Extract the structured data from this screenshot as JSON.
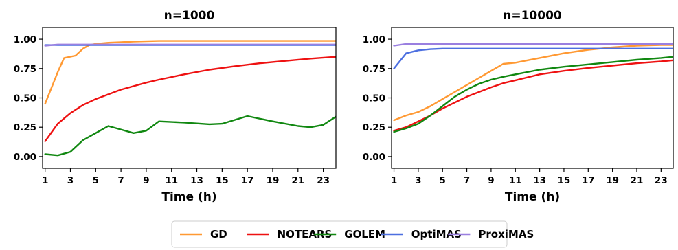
{
  "chart_data": [
    {
      "type": "line",
      "title": "n=1000",
      "xlabel": "Time (h)",
      "ylabel": "",
      "xlim": [
        0.8,
        24.0
      ],
      "ylim": [
        -0.1,
        1.1
      ],
      "xticks": [
        "1",
        "3",
        "5",
        "7",
        "9",
        "11",
        "13",
        "15",
        "17",
        "19",
        "21",
        "23"
      ],
      "yticks": [
        "0.00",
        "0.25",
        "0.50",
        "0.75",
        "1.00"
      ],
      "grid": false,
      "series": [
        {
          "name": "GD",
          "color": "#ff9933",
          "x": [
            1,
            2,
            2.5,
            3.4,
            4,
            4.5,
            5,
            6,
            7,
            8,
            10,
            12,
            14,
            16,
            18,
            20,
            22,
            24
          ],
          "y": [
            0.45,
            0.72,
            0.84,
            0.86,
            0.92,
            0.95,
            0.96,
            0.97,
            0.975,
            0.98,
            0.985,
            0.985,
            0.985,
            0.985,
            0.985,
            0.985,
            0.985,
            0.985
          ]
        },
        {
          "name": "NOTEARS",
          "color": "#ee1111",
          "x": [
            1,
            2,
            3,
            4,
            5,
            6,
            7,
            8,
            9,
            10,
            12,
            14,
            16,
            18,
            20,
            22,
            24
          ],
          "y": [
            0.13,
            0.28,
            0.37,
            0.44,
            0.49,
            0.53,
            0.57,
            0.6,
            0.63,
            0.655,
            0.7,
            0.74,
            0.77,
            0.795,
            0.815,
            0.835,
            0.85
          ]
        },
        {
          "name": "GOLEM",
          "color": "#118811",
          "x": [
            1,
            2,
            3,
            4,
            5,
            6,
            7,
            8,
            9,
            10,
            12,
            14,
            15,
            17,
            19,
            21,
            22,
            23,
            24
          ],
          "y": [
            0.02,
            0.01,
            0.04,
            0.14,
            0.2,
            0.26,
            0.23,
            0.2,
            0.22,
            0.3,
            0.29,
            0.275,
            0.28,
            0.345,
            0.3,
            0.26,
            0.25,
            0.27,
            0.34
          ]
        },
        {
          "name": "OptiMAS",
          "color": "#4c6fe0",
          "x": [
            1,
            24
          ],
          "y": [
            0.95,
            0.95
          ]
        },
        {
          "name": "ProxiMAS",
          "color": "#9a7fe0",
          "x": [
            1,
            2,
            24
          ],
          "y": [
            0.945,
            0.955,
            0.955
          ]
        }
      ]
    },
    {
      "type": "line",
      "title": "n=10000",
      "xlabel": "Time (h)",
      "ylabel": "",
      "xlim": [
        0.8,
        24.0
      ],
      "ylim": [
        -0.1,
        1.1
      ],
      "xticks": [
        "1",
        "3",
        "5",
        "7",
        "9",
        "11",
        "13",
        "15",
        "17",
        "19",
        "21",
        "23"
      ],
      "yticks": [
        "0.00",
        "0.25",
        "0.50",
        "0.75",
        "1.00"
      ],
      "grid": false,
      "series": [
        {
          "name": "GD",
          "color": "#ff9933",
          "x": [
            1,
            2,
            3,
            4,
            5,
            6,
            7,
            8,
            9,
            10,
            11,
            13,
            15,
            17,
            19,
            21,
            23,
            24
          ],
          "y": [
            0.31,
            0.35,
            0.38,
            0.43,
            0.49,
            0.55,
            0.61,
            0.67,
            0.73,
            0.79,
            0.8,
            0.84,
            0.88,
            0.91,
            0.93,
            0.945,
            0.95,
            0.95
          ]
        },
        {
          "name": "NOTEARS",
          "color": "#ee1111",
          "x": [
            1,
            2,
            3,
            4,
            5,
            6,
            7,
            8,
            9,
            10,
            11,
            13,
            15,
            17,
            19,
            21,
            23,
            24
          ],
          "y": [
            0.22,
            0.25,
            0.3,
            0.35,
            0.41,
            0.46,
            0.51,
            0.55,
            0.59,
            0.625,
            0.65,
            0.7,
            0.73,
            0.755,
            0.775,
            0.795,
            0.81,
            0.82
          ]
        },
        {
          "name": "GOLEM",
          "color": "#118811",
          "x": [
            1,
            2,
            3,
            4,
            5,
            6,
            7,
            8,
            9,
            10,
            11,
            13,
            15,
            17,
            19,
            21,
            23,
            24
          ],
          "y": [
            0.21,
            0.24,
            0.28,
            0.35,
            0.43,
            0.51,
            0.57,
            0.62,
            0.655,
            0.68,
            0.7,
            0.74,
            0.765,
            0.785,
            0.805,
            0.825,
            0.84,
            0.85
          ]
        },
        {
          "name": "OptiMAS",
          "color": "#4c6fe0",
          "x": [
            1,
            2,
            3,
            4,
            5,
            6,
            8,
            10,
            14,
            18,
            22,
            24
          ],
          "y": [
            0.75,
            0.88,
            0.905,
            0.915,
            0.92,
            0.92,
            0.92,
            0.92,
            0.92,
            0.92,
            0.92,
            0.92
          ]
        },
        {
          "name": "ProxiMAS",
          "color": "#9a7fe0",
          "x": [
            1,
            2,
            3,
            24
          ],
          "y": [
            0.945,
            0.96,
            0.96,
            0.96
          ]
        }
      ]
    }
  ],
  "legend": {
    "placement": "bottom-center",
    "entries": [
      {
        "label": "GD",
        "color": "#ff9933"
      },
      {
        "label": "NOTEARS",
        "color": "#ee1111"
      },
      {
        "label": "GOLEM",
        "color": "#118811"
      },
      {
        "label": "OptiMAS",
        "color": "#4c6fe0"
      },
      {
        "label": "ProxiMAS",
        "color": "#9a7fe0"
      }
    ]
  }
}
